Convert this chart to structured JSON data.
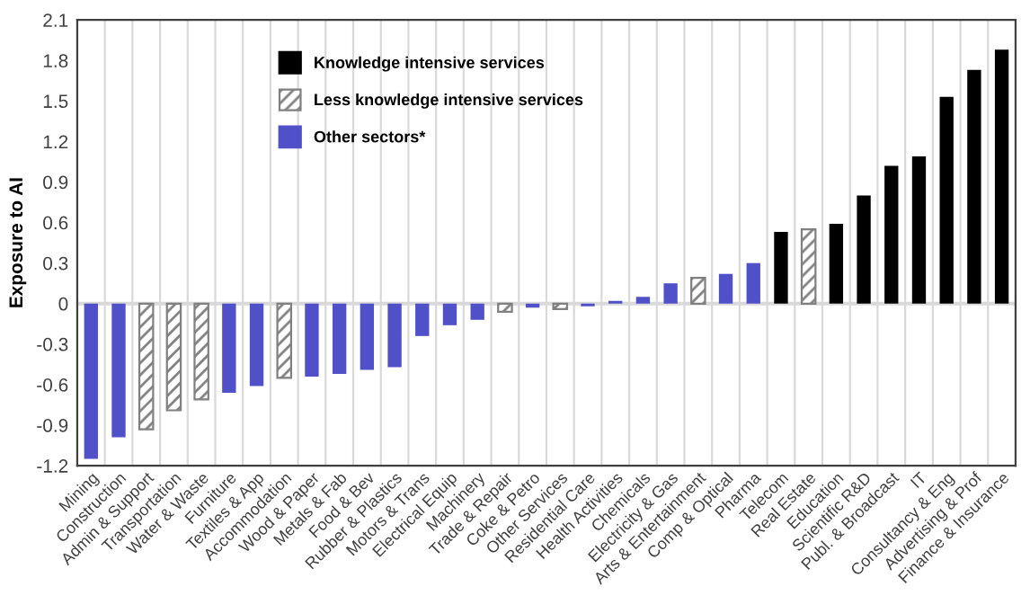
{
  "chart_data": {
    "type": "bar",
    "ylabel": "Exposure to AI",
    "categories": [
      "Mining",
      "Construction",
      "Admin & Support",
      "Transportation",
      "Water & Waste",
      "Furniture",
      "Textiles & App",
      "Accommodation",
      "Wood & Paper",
      "Metals & Fab",
      "Food & Bev",
      "Rubber & Plastics",
      "Motors & Trans",
      "Electrical Equip",
      "Machinery",
      "Trade & Repair",
      "Coke & Petro",
      "Other Services",
      "Residential Care",
      "Health Activities",
      "Chemicals",
      "Electricity & Gas",
      "Arts & Entertainment",
      "Comp & Optical",
      "Pharma",
      "Telecom",
      "Real Estate",
      "Education",
      "Scientific R&D",
      "Publ. & Broadcast",
      "IT",
      "Consultancy & Eng",
      "Advertising & Prof",
      "Finance & Insurance"
    ],
    "series": [
      {
        "name": "Knowledge intensive services",
        "color": "#000000",
        "values": [
          null,
          null,
          null,
          null,
          null,
          null,
          null,
          null,
          null,
          null,
          null,
          null,
          null,
          null,
          null,
          null,
          null,
          null,
          null,
          null,
          null,
          null,
          null,
          null,
          null,
          0.53,
          null,
          0.59,
          0.8,
          1.02,
          1.09,
          1.53,
          1.73,
          1.88
        ]
      },
      {
        "name": "Less knowledge intensive services",
        "color": "#808080",
        "values": [
          null,
          null,
          -0.93,
          -0.79,
          -0.71,
          null,
          null,
          -0.55,
          null,
          null,
          null,
          null,
          null,
          null,
          null,
          -0.06,
          null,
          -0.04,
          null,
          null,
          null,
          null,
          0.19,
          null,
          null,
          null,
          0.55,
          null,
          null,
          null,
          null,
          null,
          null,
          null
        ]
      },
      {
        "name": "Other sectors*",
        "color": "#5050c8",
        "values": [
          -1.15,
          -0.99,
          null,
          null,
          null,
          -0.66,
          -0.61,
          null,
          -0.54,
          -0.52,
          -0.49,
          -0.47,
          -0.24,
          -0.16,
          -0.12,
          null,
          -0.03,
          null,
          -0.02,
          0.02,
          0.05,
          0.15,
          null,
          0.22,
          0.3,
          null,
          null,
          null,
          null,
          null,
          null,
          null,
          null,
          null
        ]
      }
    ],
    "ylim": [
      -1.2,
      2.1
    ],
    "yticks": [
      -1.2,
      -0.9,
      -0.6,
      -0.3,
      0,
      0.3,
      0.6,
      0.9,
      1.2,
      1.5,
      1.8,
      2.1
    ],
    "ref_lines": [
      {
        "axis": "y",
        "value": 0,
        "label": null,
        "color": "#d9d9d9"
      }
    ],
    "grid": "x",
    "legend": "top left"
  }
}
